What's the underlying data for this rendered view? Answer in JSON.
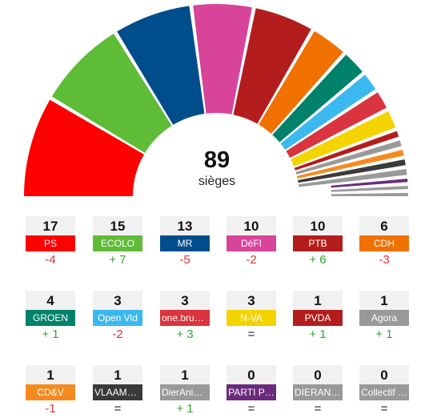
{
  "chart_data": {
    "type": "parliament-hemicycle",
    "total_seats": 89,
    "total_label": "sièges",
    "parties": [
      {
        "name": "PS",
        "seats": 17,
        "change": "-4",
        "color": "#ff0000"
      },
      {
        "name": "ECOLO",
        "seats": 15,
        "change": "+ 7",
        "color": "#5fbc37"
      },
      {
        "name": "MR",
        "seats": 13,
        "change": "-5",
        "color": "#004d8c"
      },
      {
        "name": "DéFI",
        "seats": 10,
        "change": "-2",
        "color": "#d9449b"
      },
      {
        "name": "PTB",
        "seats": 10,
        "change": "+ 6",
        "color": "#b41d1d"
      },
      {
        "name": "CDH",
        "seats": 6,
        "change": "-3",
        "color": "#f07000"
      },
      {
        "name": "GROEN",
        "seats": 4,
        "change": "+ 1",
        "color": "#00826a"
      },
      {
        "name": "Open Vld",
        "seats": 3,
        "change": "-2",
        "color": "#3cb8f0"
      },
      {
        "name": "one.brus…",
        "seats": 3,
        "change": "+ 3",
        "color": "#d9343f"
      },
      {
        "name": "N-VA",
        "seats": 3,
        "change": "=",
        "color": "#f4d400"
      },
      {
        "name": "PVDA",
        "seats": 1,
        "change": "+ 1",
        "color": "#b41d1d"
      },
      {
        "name": "Agora",
        "seats": 1,
        "change": "+ 1",
        "color": "#999999"
      },
      {
        "name": "CD&V",
        "seats": 1,
        "change": "-1",
        "color": "#f58a1f"
      },
      {
        "name": "VLAAMS …",
        "seats": 1,
        "change": "=",
        "color": "#3a3a3a"
      },
      {
        "name": "DierAnimal",
        "seats": 1,
        "change": "+ 1",
        "color": "#999999"
      },
      {
        "name": "PARTI P…",
        "seats": 0,
        "change": "=",
        "color": "#6b2a7e"
      },
      {
        "name": "DIERANI…",
        "seats": 0,
        "change": "=",
        "color": "#999999"
      },
      {
        "name": "Collectif …",
        "seats": 0,
        "change": "=",
        "color": "#999999"
      }
    ]
  },
  "colors": {
    "positive": "#2fa82f",
    "negative": "#e03030",
    "neutral": "#222222"
  }
}
